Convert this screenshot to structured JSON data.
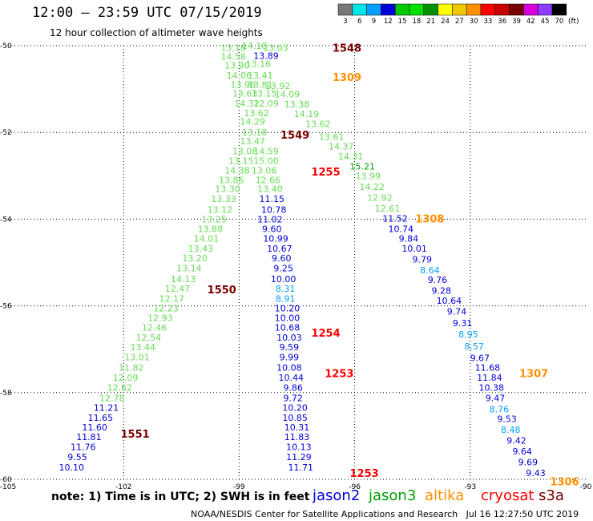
{
  "header": {
    "title": "12:00 – 23:59 UTC 07/15/2019",
    "subtitle": "12 hour collection of altimeter wave heights"
  },
  "color_scale": {
    "unit": "(ft)",
    "bins": [
      {
        "label": "3",
        "color": "#787878"
      },
      {
        "label": "6",
        "color": "#00e5e5"
      },
      {
        "label": "9",
        "color": "#00a0ff"
      },
      {
        "label": "12",
        "color": "#0000d8"
      },
      {
        "label": "15",
        "color": "#00c800"
      },
      {
        "label": "18",
        "color": "#00e000"
      },
      {
        "label": "21",
        "color": "#009000"
      },
      {
        "label": "24",
        "color": "#ffff00"
      },
      {
        "label": "27",
        "color": "#f0c800"
      },
      {
        "label": "30",
        "color": "#ff9000"
      },
      {
        "label": "33",
        "color": "#ff0000"
      },
      {
        "label": "36",
        "color": "#c80000"
      },
      {
        "label": "39",
        "color": "#780000"
      },
      {
        "label": "42",
        "color": "#d800d8"
      },
      {
        "label": "45",
        "color": "#8c3cff"
      },
      {
        "label": "70",
        "color": "#000000"
      }
    ]
  },
  "axes": {
    "lon_ticks": [
      "-105",
      "-102",
      "-99",
      "-96",
      "-93",
      "-90"
    ],
    "lat_ticks": [
      "-50",
      "-52",
      "-54",
      "-56",
      "-58",
      "-60"
    ]
  },
  "note": "note: 1) Time is in UTC; 2) SWH is in feet",
  "legend": [
    {
      "name": "jason2",
      "color": "#0000d8"
    },
    {
      "name": "jason3",
      "color": "#00a000"
    },
    {
      "name": "altika",
      "color": "#ff9000"
    },
    {
      "name": "cryosat",
      "color": "#ff0000"
    },
    {
      "name": "s3a",
      "color": "#780000"
    }
  ],
  "footer": "NOAA/NESDIS Center for Satellite Applications and Research   Jul 16 12:27:50 UTC 2019",
  "observations": [
    {
      "text": "13.18",
      "lon": -99.15,
      "lat": -50.05,
      "color": "#66dd55"
    },
    {
      "text": "14.10",
      "lon": -98.6,
      "lat": -50.0,
      "color": "#66dd55"
    },
    {
      "text": "13.05",
      "lon": -98.05,
      "lat": -50.05,
      "color": "#66dd55"
    },
    {
      "text": "14.58",
      "lon": -99.15,
      "lat": -50.25,
      "color": "#66dd55"
    },
    {
      "text": "13.89",
      "lon": -98.3,
      "lat": -50.23,
      "color": "#0000d8"
    },
    {
      "text": "13.90",
      "lon": -99.05,
      "lat": -50.45,
      "color": "#66dd55"
    },
    {
      "text": "13.16",
      "lon": -98.5,
      "lat": -50.42,
      "color": "#66dd55"
    },
    {
      "text": "14.06",
      "lon": -99.0,
      "lat": -50.68,
      "color": "#66dd55"
    },
    {
      "text": "13.41",
      "lon": -98.45,
      "lat": -50.68,
      "color": "#66dd55"
    },
    {
      "text": "13.96",
      "lon": -98.9,
      "lat": -50.9,
      "color": "#66dd55"
    },
    {
      "text": "13.81",
      "lon": -98.45,
      "lat": -50.9,
      "color": "#66dd55"
    },
    {
      "text": "13.92",
      "lon": -98.0,
      "lat": -50.92,
      "color": "#66dd55"
    },
    {
      "text": "13.63",
      "lon": -98.85,
      "lat": -51.1,
      "color": "#66dd55"
    },
    {
      "text": "13.15",
      "lon": -98.35,
      "lat": -51.1,
      "color": "#66dd55"
    },
    {
      "text": "14.09",
      "lon": -97.75,
      "lat": -51.12,
      "color": "#66dd55"
    },
    {
      "text": "14.32",
      "lon": -98.8,
      "lat": -51.33,
      "color": "#66dd55"
    },
    {
      "text": "12.09",
      "lon": -98.3,
      "lat": -51.33,
      "color": "#66dd55"
    },
    {
      "text": "13.38",
      "lon": -97.5,
      "lat": -51.35,
      "color": "#66dd55"
    },
    {
      "text": "13.62",
      "lon": -98.55,
      "lat": -51.55,
      "color": "#66dd55"
    },
    {
      "text": "14.19",
      "lon": -97.25,
      "lat": -51.57,
      "color": "#66dd55"
    },
    {
      "text": "14.29",
      "lon": -98.65,
      "lat": -51.75,
      "color": "#66dd55"
    },
    {
      "text": "13.62",
      "lon": -96.95,
      "lat": -51.8,
      "color": "#66dd55"
    },
    {
      "text": "13.18",
      "lon": -98.6,
      "lat": -52.0,
      "color": "#66dd55"
    },
    {
      "text": "13.61",
      "lon": -96.6,
      "lat": -52.1,
      "color": "#66dd55"
    },
    {
      "text": "13.47",
      "lon": -98.65,
      "lat": -52.2,
      "color": "#66dd55"
    },
    {
      "text": "14.37",
      "lon": -96.35,
      "lat": -52.32,
      "color": "#66dd55"
    },
    {
      "text": "13.08",
      "lon": -98.85,
      "lat": -52.43,
      "color": "#66dd55"
    },
    {
      "text": "14.59",
      "lon": -98.3,
      "lat": -52.43,
      "color": "#66dd55"
    },
    {
      "text": "14.31",
      "lon": -96.1,
      "lat": -52.55,
      "color": "#66dd55"
    },
    {
      "text": "13.15",
      "lon": -98.95,
      "lat": -52.65,
      "color": "#66dd55"
    },
    {
      "text": "15.00",
      "lon": -98.3,
      "lat": -52.65,
      "color": "#66dd55"
    },
    {
      "text": "15.21",
      "lon": -95.8,
      "lat": -52.78,
      "color": "#00a000"
    },
    {
      "text": "14.38",
      "lon": -99.05,
      "lat": -52.87,
      "color": "#66dd55"
    },
    {
      "text": "13.06",
      "lon": -98.35,
      "lat": -52.87,
      "color": "#66dd55"
    },
    {
      "text": "13.99",
      "lon": -95.65,
      "lat": -53.0,
      "color": "#66dd55"
    },
    {
      "text": "13.86",
      "lon": -99.2,
      "lat": -53.1,
      "color": "#66dd55"
    },
    {
      "text": "12.66",
      "lon": -98.25,
      "lat": -53.1,
      "color": "#66dd55"
    },
    {
      "text": "14.22",
      "lon": -95.55,
      "lat": -53.25,
      "color": "#66dd55"
    },
    {
      "text": "13.30",
      "lon": -99.3,
      "lat": -53.3,
      "color": "#66dd55"
    },
    {
      "text": "13.40",
      "lon": -98.2,
      "lat": -53.3,
      "color": "#66dd55"
    },
    {
      "text": "12.92",
      "lon": -95.35,
      "lat": -53.5,
      "color": "#66dd55"
    },
    {
      "text": "13.33",
      "lon": -99.4,
      "lat": -53.53,
      "color": "#66dd55"
    },
    {
      "text": "11.15",
      "lon": -98.15,
      "lat": -53.53,
      "color": "#0000d8"
    },
    {
      "text": "12.61",
      "lon": -95.15,
      "lat": -53.75,
      "color": "#66dd55"
    },
    {
      "text": "13.12",
      "lon": -99.5,
      "lat": -53.78,
      "color": "#66dd55"
    },
    {
      "text": "10.78",
      "lon": -98.1,
      "lat": -53.78,
      "color": "#0000d8"
    },
    {
      "text": "13.25",
      "lon": -99.65,
      "lat": -54.0,
      "color": "#66dd55"
    },
    {
      "text": "11.02",
      "lon": -98.2,
      "lat": -54.0,
      "color": "#0000d8"
    },
    {
      "text": "11.52",
      "lon": -94.95,
      "lat": -53.98,
      "color": "#0000d8"
    },
    {
      "text": "13.88",
      "lon": -99.75,
      "lat": -54.22,
      "color": "#66dd55"
    },
    {
      "text": "9.60",
      "lon": -98.15,
      "lat": -54.22,
      "color": "#0000d8"
    },
    {
      "text": "10.74",
      "lon": -94.8,
      "lat": -54.22,
      "color": "#0000d8"
    },
    {
      "text": "14.01",
      "lon": -99.85,
      "lat": -54.45,
      "color": "#66dd55"
    },
    {
      "text": "10.99",
      "lon": -98.05,
      "lat": -54.45,
      "color": "#0000d8"
    },
    {
      "text": "9.84",
      "lon": -94.6,
      "lat": -54.45,
      "color": "#0000d8"
    },
    {
      "text": "13.43",
      "lon": -100.0,
      "lat": -54.68,
      "color": "#66dd55"
    },
    {
      "text": "10.67",
      "lon": -97.95,
      "lat": -54.68,
      "color": "#0000d8"
    },
    {
      "text": "10.01",
      "lon": -94.45,
      "lat": -54.68,
      "color": "#0000d8"
    },
    {
      "text": "13.20",
      "lon": -100.15,
      "lat": -54.9,
      "color": "#66dd55"
    },
    {
      "text": "9.60",
      "lon": -97.9,
      "lat": -54.9,
      "color": "#0000d8"
    },
    {
      "text": "9.79",
      "lon": -94.25,
      "lat": -54.93,
      "color": "#0000d8"
    },
    {
      "text": "13.14",
      "lon": -100.3,
      "lat": -55.13,
      "color": "#66dd55"
    },
    {
      "text": "9.25",
      "lon": -97.85,
      "lat": -55.13,
      "color": "#0000d8"
    },
    {
      "text": "8.64",
      "lon": -94.05,
      "lat": -55.18,
      "color": "#00a0ff"
    },
    {
      "text": "14.13",
      "lon": -100.45,
      "lat": -55.38,
      "color": "#66dd55"
    },
    {
      "text": "10.00",
      "lon": -97.85,
      "lat": -55.38,
      "color": "#0000d8"
    },
    {
      "text": "9.76",
      "lon": -93.85,
      "lat": -55.4,
      "color": "#0000d8"
    },
    {
      "text": "12.47",
      "lon": -100.6,
      "lat": -55.6,
      "color": "#66dd55"
    },
    {
      "text": "8.31",
      "lon": -97.8,
      "lat": -55.6,
      "color": "#00a0ff"
    },
    {
      "text": "9.28",
      "lon": -93.75,
      "lat": -55.65,
      "color": "#0000d8"
    },
    {
      "text": "12.17",
      "lon": -100.75,
      "lat": -55.83,
      "color": "#66dd55"
    },
    {
      "text": "8.91",
      "lon": -97.8,
      "lat": -55.83,
      "color": "#00a0ff"
    },
    {
      "text": "10.64",
      "lon": -93.55,
      "lat": -55.88,
      "color": "#0000d8"
    },
    {
      "text": "12.23",
      "lon": -100.9,
      "lat": -56.05,
      "color": "#66dd55"
    },
    {
      "text": "10.20",
      "lon": -97.75,
      "lat": -56.05,
      "color": "#0000d8"
    },
    {
      "text": "9.74",
      "lon": -93.35,
      "lat": -56.13,
      "color": "#0000d8"
    },
    {
      "text": "12.93",
      "lon": -101.05,
      "lat": -56.28,
      "color": "#66dd55"
    },
    {
      "text": "10.00",
      "lon": -97.75,
      "lat": -56.28,
      "color": "#0000d8"
    },
    {
      "text": "9.31",
      "lon": -93.2,
      "lat": -56.4,
      "color": "#0000d8"
    },
    {
      "text": "12.46",
      "lon": -101.2,
      "lat": -56.5,
      "color": "#66dd55"
    },
    {
      "text": "10.68",
      "lon": -97.75,
      "lat": -56.5,
      "color": "#0000d8"
    },
    {
      "text": "8.95",
      "lon": -93.05,
      "lat": -56.65,
      "color": "#00a0ff"
    },
    {
      "text": "12.54",
      "lon": -101.35,
      "lat": -56.73,
      "color": "#66dd55"
    },
    {
      "text": "10.03",
      "lon": -97.7,
      "lat": -56.73,
      "color": "#0000d8"
    },
    {
      "text": "8.57",
      "lon": -92.9,
      "lat": -56.93,
      "color": "#00a0ff"
    },
    {
      "text": "13.44",
      "lon": -101.5,
      "lat": -56.95,
      "color": "#66dd55"
    },
    {
      "text": "9.59",
      "lon": -97.7,
      "lat": -56.95,
      "color": "#0000d8"
    },
    {
      "text": "13.01",
      "lon": -101.65,
      "lat": -57.18,
      "color": "#66dd55"
    },
    {
      "text": "9.99",
      "lon": -97.7,
      "lat": -57.18,
      "color": "#0000d8"
    },
    {
      "text": "9.67",
      "lon": -92.75,
      "lat": -57.2,
      "color": "#0000d8"
    },
    {
      "text": "11.82",
      "lon": -101.8,
      "lat": -57.42,
      "color": "#66dd55"
    },
    {
      "text": "10.08",
      "lon": -97.7,
      "lat": -57.42,
      "color": "#0000d8"
    },
    {
      "text": "11.68",
      "lon": -92.55,
      "lat": -57.42,
      "color": "#0000d8"
    },
    {
      "text": "12.09",
      "lon": -101.95,
      "lat": -57.65,
      "color": "#66dd55"
    },
    {
      "text": "10.44",
      "lon": -97.65,
      "lat": -57.65,
      "color": "#0000d8"
    },
    {
      "text": "11.84",
      "lon": -92.5,
      "lat": -57.65,
      "color": "#0000d8"
    },
    {
      "text": "12.62",
      "lon": -102.1,
      "lat": -57.88,
      "color": "#66dd55"
    },
    {
      "text": "9.86",
      "lon": -97.6,
      "lat": -57.88,
      "color": "#0000d8"
    },
    {
      "text": "10.38",
      "lon": -92.45,
      "lat": -57.88,
      "color": "#0000d8"
    },
    {
      "text": "12.78",
      "lon": -102.3,
      "lat": -58.12,
      "color": "#66dd55"
    },
    {
      "text": "9.72",
      "lon": -97.6,
      "lat": -58.12,
      "color": "#0000d8"
    },
    {
      "text": "9.47",
      "lon": -92.35,
      "lat": -58.12,
      "color": "#0000d8"
    },
    {
      "text": "11.21",
      "lon": -102.45,
      "lat": -58.35,
      "color": "#0000d8"
    },
    {
      "text": "10.20",
      "lon": -97.55,
      "lat": -58.35,
      "color": "#0000d8"
    },
    {
      "text": "8.76",
      "lon": -92.25,
      "lat": -58.38,
      "color": "#00a0ff"
    },
    {
      "text": "11.65",
      "lon": -102.6,
      "lat": -58.58,
      "color": "#0000d8"
    },
    {
      "text": "10.85",
      "lon": -97.55,
      "lat": -58.58,
      "color": "#0000d8"
    },
    {
      "text": "9.53",
      "lon": -92.05,
      "lat": -58.6,
      "color": "#0000d8"
    },
    {
      "text": "11.60",
      "lon": -102.75,
      "lat": -58.8,
      "color": "#0000d8"
    },
    {
      "text": "10.31",
      "lon": -97.5,
      "lat": -58.8,
      "color": "#0000d8"
    },
    {
      "text": "8.48",
      "lon": -91.95,
      "lat": -58.85,
      "color": "#00a0ff"
    },
    {
      "text": "11.81",
      "lon": -102.9,
      "lat": -59.02,
      "color": "#0000d8"
    },
    {
      "text": "11.83",
      "lon": -97.5,
      "lat": -59.02,
      "color": "#0000d8"
    },
    {
      "text": "9.42",
      "lon": -91.8,
      "lat": -59.1,
      "color": "#0000d8"
    },
    {
      "text": "11.76",
      "lon": -103.05,
      "lat": -59.25,
      "color": "#0000d8"
    },
    {
      "text": "10.13",
      "lon": -97.45,
      "lat": -59.25,
      "color": "#0000d8"
    },
    {
      "text": "9.64",
      "lon": -91.65,
      "lat": -59.35,
      "color": "#0000d8"
    },
    {
      "text": "9.55",
      "lon": -103.2,
      "lat": -59.48,
      "color": "#0000d8"
    },
    {
      "text": "11.29",
      "lon": -97.45,
      "lat": -59.48,
      "color": "#0000d8"
    },
    {
      "text": "9.69",
      "lon": -91.5,
      "lat": -59.6,
      "color": "#0000d8"
    },
    {
      "text": "10.10",
      "lon": -103.35,
      "lat": -59.72,
      "color": "#0000d8"
    },
    {
      "text": "11.71",
      "lon": -97.4,
      "lat": -59.72,
      "color": "#0000d8"
    },
    {
      "text": "9.43",
      "lon": -91.3,
      "lat": -59.85,
      "color": "#0000d8"
    }
  ],
  "time_labels": [
    {
      "text": "1548",
      "lon": -96.2,
      "lat": -50.05,
      "color": "#780000"
    },
    {
      "text": "1309",
      "lon": -96.2,
      "lat": -50.72,
      "color": "#ff9000"
    },
    {
      "text": "1549",
      "lon": -97.55,
      "lat": -52.05,
      "color": "#780000"
    },
    {
      "text": "1255",
      "lon": -96.75,
      "lat": -52.9,
      "color": "#ff0000"
    },
    {
      "text": "1308",
      "lon": -94.05,
      "lat": -53.98,
      "color": "#ff9000"
    },
    {
      "text": "1550",
      "lon": -99.45,
      "lat": -55.62,
      "color": "#780000"
    },
    {
      "text": "1254",
      "lon": -96.75,
      "lat": -56.62,
      "color": "#ff0000"
    },
    {
      "text": "1253",
      "lon": -96.4,
      "lat": -57.55,
      "color": "#ff0000"
    },
    {
      "text": "1307",
      "lon": -91.35,
      "lat": -57.55,
      "color": "#ff9000"
    },
    {
      "text": "1551",
      "lon": -101.7,
      "lat": -58.95,
      "color": "#780000"
    },
    {
      "text": "1253",
      "lon": -95.75,
      "lat": -59.85,
      "color": "#ff0000"
    },
    {
      "text": "1306",
      "lon": -90.55,
      "lat": -60.05,
      "color": "#ff9000"
    }
  ]
}
